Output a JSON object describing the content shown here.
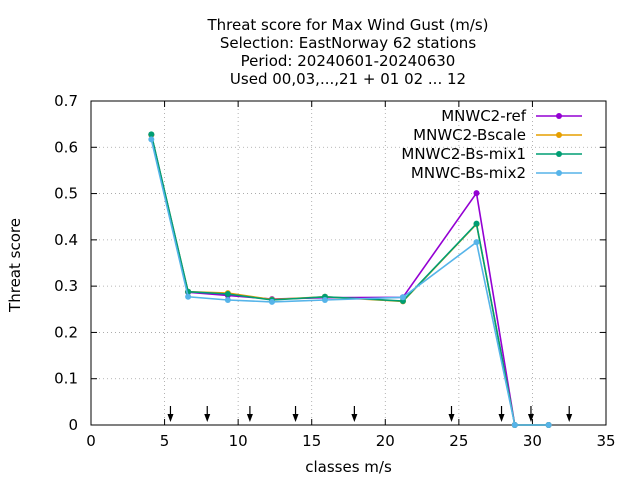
{
  "chart_data": {
    "type": "line",
    "title_lines": [
      "Threat score  for Max Wind Gust (m/s)",
      "Selection: EastNorway     62 stations",
      "Period: 20240601-20240630",
      "Used 00,03,...,21 + 01 02 ... 12"
    ],
    "xlabel": "classes m/s",
    "ylabel": "Threat score",
    "xlim": [
      0,
      35
    ],
    "ylim": [
      0,
      0.7
    ],
    "xticks": [
      0,
      5,
      10,
      15,
      20,
      25,
      30,
      35
    ],
    "yticks": [
      0,
      0.1,
      0.2,
      0.3,
      0.4,
      0.5,
      0.6,
      0.7
    ],
    "ytick_labels": [
      "0",
      "0.1",
      "0.2",
      "0.3",
      "0.4",
      "0.5",
      "0.6",
      "0.7"
    ],
    "grid": true,
    "legend_position": "top-right",
    "x": [
      4.1,
      6.6,
      9.3,
      12.3,
      15.9,
      21.2,
      26.2,
      28.8,
      31.1
    ],
    "series": [
      {
        "name": "MNWC2-ref",
        "color": "#9400d3",
        "values": [
          0.627,
          0.287,
          0.28,
          0.272,
          0.275,
          0.276,
          0.501,
          0.0,
          0.0
        ]
      },
      {
        "name": "MNWC2-Bscale",
        "color": "#e69f00",
        "values": [
          0.627,
          0.288,
          0.285,
          0.271,
          0.277,
          0.267,
          0.434,
          0.0,
          0.0
        ]
      },
      {
        "name": "MNWC2-Bs-mix1",
        "color": "#009e73",
        "values": [
          0.628,
          0.288,
          0.283,
          0.27,
          0.277,
          0.268,
          0.435,
          0.0,
          0.0
        ]
      },
      {
        "name": "MNWC-Bs-mix2",
        "color": "#56b4e9",
        "values": [
          0.617,
          0.277,
          0.27,
          0.266,
          0.27,
          0.276,
          0.395,
          0.0,
          0.0
        ]
      }
    ],
    "class_boundary_arrows_x": [
      5.4,
      7.9,
      10.8,
      13.9,
      17.9,
      24.5,
      27.9,
      29.9,
      32.5
    ]
  }
}
